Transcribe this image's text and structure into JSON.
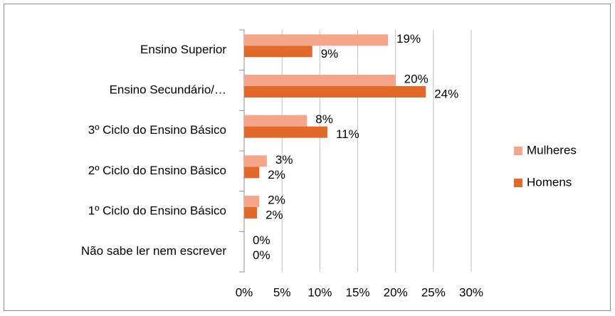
{
  "chart_data": {
    "type": "bar",
    "orientation": "horizontal",
    "categories": [
      "Ensino Superior",
      "Ensino Secundário/…",
      "3º Ciclo do Ensino Básico",
      "2º Ciclo do Ensino Básico",
      "1º Ciclo do Ensino Básico",
      "Não sabe ler nem escrever"
    ],
    "series": [
      {
        "name": "Mulheres",
        "color": "#f4a58a",
        "values": [
          19,
          20,
          8.3,
          3,
          2,
          0
        ],
        "value_labels": [
          "19%",
          "20%",
          "8%",
          "3%",
          "2%",
          "0%"
        ]
      },
      {
        "name": "Homens",
        "color": "#e2692a",
        "values": [
          9,
          24,
          11,
          2,
          1.7,
          0
        ],
        "value_labels": [
          "9%",
          "24%",
          "11%",
          "2%",
          "2%",
          "0%"
        ]
      }
    ],
    "xlim": [
      0,
      30
    ],
    "xticks": [
      {
        "value": 0,
        "label": "0%"
      },
      {
        "value": 5,
        "label": "5%"
      },
      {
        "value": 10,
        "label": "10%"
      },
      {
        "value": 15,
        "label": "15%"
      },
      {
        "value": 20,
        "label": "20%"
      },
      {
        "value": 25,
        "label": "25%"
      },
      {
        "value": 30,
        "label": "30%"
      }
    ],
    "grid": true,
    "legend": "right"
  }
}
